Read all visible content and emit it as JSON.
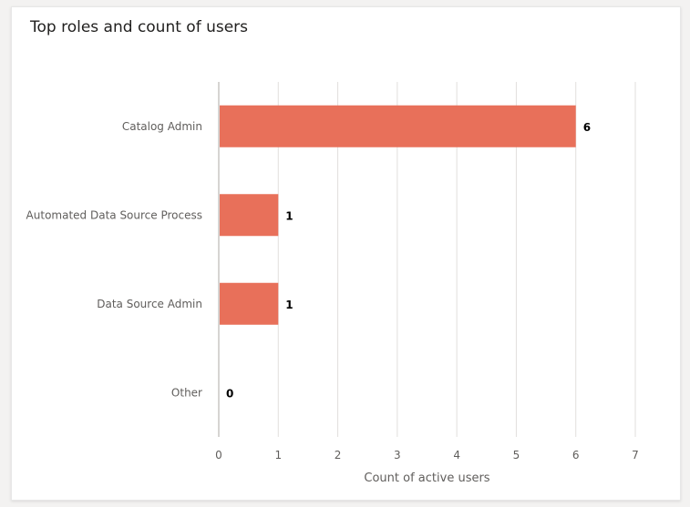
{
  "card": {
    "title": "Top roles and count of users"
  },
  "chart_data": {
    "type": "bar",
    "orientation": "horizontal",
    "title": "Top roles and count of users",
    "categories": [
      "Catalog Admin",
      "Automated Data Source Process",
      "Data Source Admin",
      "Other"
    ],
    "values": [
      6,
      1,
      1,
      0
    ],
    "xlabel": "Count of active users",
    "ylabel": "",
    "xlim": [
      0,
      7
    ],
    "x_ticks": [
      0,
      1,
      2,
      3,
      4,
      5,
      6,
      7
    ],
    "grid": true,
    "legend": "none",
    "data_labels": [
      "6",
      "1",
      "1",
      "0"
    ],
    "colors": {
      "bar": "#e8705a",
      "gridline": "#e1dfdd",
      "axis": "#c8c6c4",
      "tick_text": "#605e5c",
      "category_text": "#605e5c",
      "data_label": "#000000"
    }
  }
}
